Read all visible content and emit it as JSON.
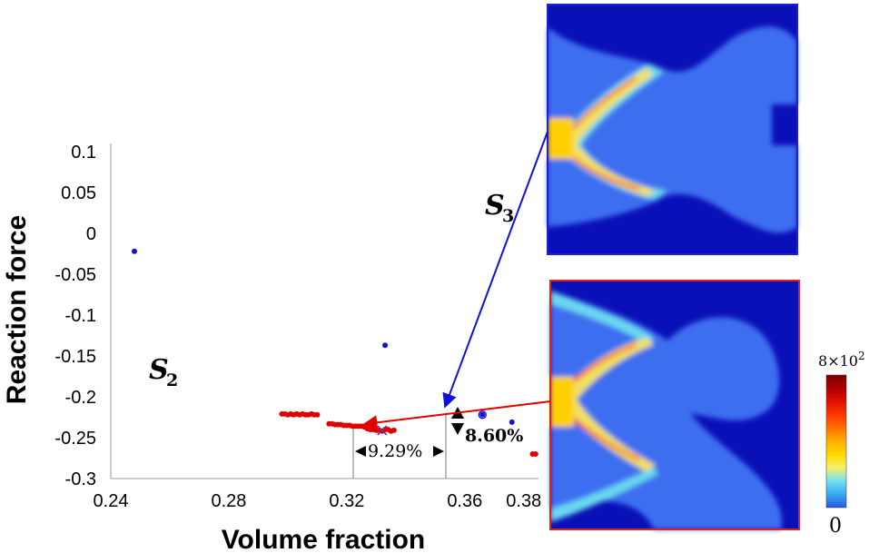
{
  "chart_data": {
    "type": "scatter",
    "xlabel": "Volume fraction",
    "ylabel": "Reaction force",
    "xlim": [
      0.24,
      0.385
    ],
    "ylim": [
      -0.3,
      0.11
    ],
    "xticks": [
      "0.24",
      "0.28",
      "0.32",
      "0.36",
      "0.38"
    ],
    "yticks": [
      "0.1",
      "0.05",
      "0",
      "-0.05",
      "-0.1",
      "-0.15",
      "-0.2",
      "-0.25",
      "-0.3"
    ],
    "series": [
      {
        "color": "#1010e0",
        "points": [
          [
            0.248,
            -0.022
          ],
          [
            0.333,
            -0.137
          ],
          [
            0.366,
            -0.222
          ],
          [
            0.376,
            -0.231
          ]
        ]
      },
      {
        "color": "#e00000",
        "points": [
          [
            0.298,
            -0.221
          ],
          [
            0.299,
            -0.221
          ],
          [
            0.3,
            -0.222
          ],
          [
            0.301,
            -0.221
          ],
          [
            0.302,
            -0.222
          ],
          [
            0.303,
            -0.221
          ],
          [
            0.304,
            -0.222
          ],
          [
            0.305,
            -0.221
          ],
          [
            0.306,
            -0.222
          ],
          [
            0.307,
            -0.222
          ],
          [
            0.308,
            -0.221
          ],
          [
            0.309,
            -0.222
          ],
          [
            0.31,
            -0.222
          ],
          [
            0.314,
            -0.233
          ],
          [
            0.315,
            -0.233
          ],
          [
            0.316,
            -0.234
          ],
          [
            0.317,
            -0.234
          ],
          [
            0.318,
            -0.234
          ],
          [
            0.319,
            -0.235
          ],
          [
            0.32,
            -0.235
          ],
          [
            0.321,
            -0.235
          ],
          [
            0.322,
            -0.236
          ],
          [
            0.323,
            -0.236
          ],
          [
            0.324,
            -0.236
          ],
          [
            0.325,
            -0.236
          ],
          [
            0.326,
            -0.237
          ],
          [
            0.327,
            -0.239
          ],
          [
            0.328,
            -0.24
          ],
          [
            0.329,
            -0.24
          ],
          [
            0.33,
            -0.241
          ],
          [
            0.331,
            -0.241
          ],
          [
            0.332,
            -0.242
          ],
          [
            0.333,
            -0.24
          ],
          [
            0.334,
            -0.24
          ],
          [
            0.335,
            -0.242
          ],
          [
            0.336,
            -0.241
          ],
          [
            0.383,
            -0.27
          ],
          [
            0.384,
            -0.27
          ]
        ]
      }
    ],
    "markers": [
      {
        "symbol": "x",
        "x": 0.332,
        "y": -0.241,
        "color": "#7a2a8a"
      },
      {
        "symbol": "o",
        "x": 0.366,
        "y": -0.222,
        "color": "#1010e0"
      }
    ],
    "annotations": {
      "s2_label": "S",
      "s2_sub": "2",
      "s3_label": "S",
      "s3_sub": "3",
      "delta_x": "9.29%",
      "delta_y": "8.60%"
    },
    "colorbar": {
      "max_base": "8",
      "max_times": "×10",
      "max_exp": "2",
      "min": "0",
      "colors": [
        "#2b56e6",
        "#3aa8f0",
        "#6fe0f5",
        "#f5f06a",
        "#ffd700",
        "#ffb000",
        "#ff7000",
        "#ff3a00",
        "#e01000",
        "#b00000",
        "#7a0000"
      ]
    }
  },
  "images": {
    "top_frame_color": "#2020d0",
    "bottom_frame_color": "#e02020"
  }
}
